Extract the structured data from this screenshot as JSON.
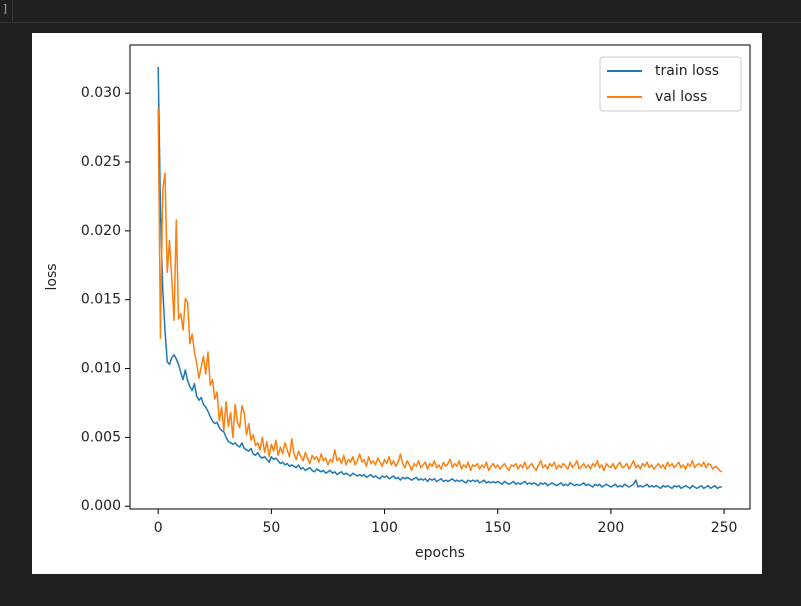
{
  "cell_prompt": "]",
  "chart_data": {
    "type": "line",
    "xlabel": "epochs",
    "ylabel": "loss",
    "x": [
      0,
      1,
      2,
      3,
      4,
      5,
      6,
      7,
      8,
      9,
      10,
      11,
      12,
      13,
      14,
      15,
      16,
      17,
      18,
      19,
      20,
      21,
      22,
      23,
      24,
      25,
      26,
      27,
      28,
      29,
      30,
      31,
      32,
      33,
      34,
      35,
      36,
      37,
      38,
      39,
      40,
      41,
      42,
      43,
      44,
      45,
      46,
      47,
      48,
      49,
      50,
      51,
      52,
      53,
      54,
      55,
      56,
      57,
      58,
      59,
      60,
      61,
      62,
      63,
      64,
      65,
      66,
      67,
      68,
      69,
      70,
      71,
      72,
      73,
      74,
      75,
      76,
      77,
      78,
      79,
      80,
      81,
      82,
      83,
      84,
      85,
      86,
      87,
      88,
      89,
      90,
      91,
      92,
      93,
      94,
      95,
      96,
      97,
      98,
      99,
      100,
      101,
      102,
      103,
      104,
      105,
      106,
      107,
      108,
      109,
      110,
      111,
      112,
      113,
      114,
      115,
      116,
      117,
      118,
      119,
      120,
      121,
      122,
      123,
      124,
      125,
      126,
      127,
      128,
      129,
      130,
      131,
      132,
      133,
      134,
      135,
      136,
      137,
      138,
      139,
      140,
      141,
      142,
      143,
      144,
      145,
      146,
      147,
      148,
      149,
      150,
      151,
      152,
      153,
      154,
      155,
      156,
      157,
      158,
      159,
      160,
      161,
      162,
      163,
      164,
      165,
      166,
      167,
      168,
      169,
      170,
      171,
      172,
      173,
      174,
      175,
      176,
      177,
      178,
      179,
      180,
      181,
      182,
      183,
      184,
      185,
      186,
      187,
      188,
      189,
      190,
      191,
      192,
      193,
      194,
      195,
      196,
      197,
      198,
      199,
      200,
      201,
      202,
      203,
      204,
      205,
      206,
      207,
      208,
      209,
      210,
      211,
      212,
      213,
      214,
      215,
      216,
      217,
      218,
      219,
      220,
      221,
      222,
      223,
      224,
      225,
      226,
      227,
      228,
      229,
      230,
      231,
      232,
      233,
      234,
      235,
      236,
      237,
      238,
      239,
      240,
      241,
      242,
      243,
      244,
      245,
      246,
      247,
      248,
      249
    ],
    "series": [
      {
        "name": "train loss",
        "color": "#1f77b4",
        "values": [
          0.0319,
          0.0215,
          0.0158,
          0.0128,
          0.0105,
          0.0103,
          0.0108,
          0.011,
          0.0107,
          0.0103,
          0.0097,
          0.0092,
          0.0099,
          0.0091,
          0.0087,
          0.0084,
          0.0089,
          0.008,
          0.0077,
          0.0079,
          0.0074,
          0.0072,
          0.0069,
          0.0065,
          0.0062,
          0.006,
          0.0061,
          0.0057,
          0.0055,
          0.0054,
          0.005,
          0.0047,
          0.0046,
          0.0045,
          0.0046,
          0.0044,
          0.0043,
          0.0046,
          0.0042,
          0.0041,
          0.004,
          0.0042,
          0.0038,
          0.0037,
          0.0039,
          0.0036,
          0.0035,
          0.0036,
          0.0034,
          0.0032,
          0.0036,
          0.0034,
          0.0035,
          0.0033,
          0.0031,
          0.0032,
          0.003,
          0.0031,
          0.0029,
          0.003,
          0.0029,
          0.0028,
          0.003,
          0.0027,
          0.0028,
          0.0026,
          0.0027,
          0.0028,
          0.0026,
          0.0025,
          0.0027,
          0.0026,
          0.0025,
          0.0026,
          0.0024,
          0.0025,
          0.0026,
          0.0024,
          0.0025,
          0.0023,
          0.0024,
          0.0025,
          0.0023,
          0.0024,
          0.0023,
          0.0022,
          0.0024,
          0.0023,
          0.0022,
          0.0023,
          0.0022,
          0.0023,
          0.0021,
          0.0022,
          0.0023,
          0.0021,
          0.0022,
          0.0021,
          0.002,
          0.0022,
          0.0021,
          0.0022,
          0.002,
          0.0021,
          0.0022,
          0.002,
          0.0021,
          0.0019,
          0.0021,
          0.002,
          0.0021,
          0.002,
          0.0019,
          0.002,
          0.0021,
          0.0019,
          0.002,
          0.0019,
          0.002,
          0.0018,
          0.002,
          0.0019,
          0.002,
          0.0018,
          0.0019,
          0.002,
          0.0018,
          0.0019,
          0.0018,
          0.0019,
          0.002,
          0.0018,
          0.0019,
          0.0018,
          0.0019,
          0.0018,
          0.0017,
          0.0019,
          0.0018,
          0.0019,
          0.0018,
          0.0019,
          0.0017,
          0.0018,
          0.0019,
          0.0017,
          0.0018,
          0.0017,
          0.0018,
          0.0017,
          0.0018,
          0.0017,
          0.0016,
          0.0018,
          0.0017,
          0.0016,
          0.0017,
          0.0018,
          0.0016,
          0.0017,
          0.0016,
          0.0017,
          0.0018,
          0.0016,
          0.0017,
          0.0016,
          0.0017,
          0.0016,
          0.0015,
          0.0017,
          0.0016,
          0.0017,
          0.0015,
          0.0016,
          0.0017,
          0.0016,
          0.0015,
          0.0016,
          0.0017,
          0.0015,
          0.0016,
          0.0015,
          0.0017,
          0.0016,
          0.0015,
          0.0016,
          0.0015,
          0.0016,
          0.0017,
          0.0015,
          0.0016,
          0.0015,
          0.0014,
          0.0016,
          0.0015,
          0.0016,
          0.0014,
          0.0015,
          0.0016,
          0.0015,
          0.0014,
          0.0015,
          0.0016,
          0.0014,
          0.0015,
          0.0014,
          0.0016,
          0.0015,
          0.0014,
          0.0015,
          0.0016,
          0.0019,
          0.0014,
          0.0015,
          0.0014,
          0.0015,
          0.0016,
          0.0014,
          0.0015,
          0.0014,
          0.0015,
          0.0014,
          0.0013,
          0.0015,
          0.0014,
          0.0015,
          0.0014,
          0.0013,
          0.0015,
          0.0014,
          0.0015,
          0.0013,
          0.0014,
          0.0015,
          0.0014,
          0.0013,
          0.0015,
          0.0014,
          0.0013,
          0.0014,
          0.0015,
          0.0013,
          0.0014,
          0.0015,
          0.0013,
          0.0014,
          0.0015,
          0.0013,
          0.0014,
          0.0014
        ]
      },
      {
        "name": "val loss",
        "color": "#ff7f0e",
        "values": [
          0.0289,
          0.0122,
          0.023,
          0.0242,
          0.017,
          0.0193,
          0.0165,
          0.0135,
          0.0208,
          0.0136,
          0.014,
          0.0128,
          0.0151,
          0.0148,
          0.0118,
          0.0125,
          0.0112,
          0.0104,
          0.0093,
          0.0101,
          0.0109,
          0.0096,
          0.0112,
          0.0088,
          0.0092,
          0.0078,
          0.0083,
          0.0062,
          0.0072,
          0.0055,
          0.0076,
          0.0058,
          0.0068,
          0.005,
          0.0074,
          0.0061,
          0.0057,
          0.0073,
          0.0068,
          0.0052,
          0.006,
          0.0048,
          0.0052,
          0.0044,
          0.0046,
          0.0041,
          0.005,
          0.0039,
          0.0047,
          0.0036,
          0.0045,
          0.004,
          0.0048,
          0.0037,
          0.0043,
          0.0038,
          0.0046,
          0.0041,
          0.0036,
          0.0049,
          0.0038,
          0.0034,
          0.004,
          0.0036,
          0.0033,
          0.0039,
          0.0035,
          0.0031,
          0.0037,
          0.0034,
          0.0036,
          0.0032,
          0.0038,
          0.0033,
          0.0035,
          0.003,
          0.0034,
          0.0032,
          0.0041,
          0.0033,
          0.0035,
          0.0031,
          0.0037,
          0.003,
          0.0034,
          0.0032,
          0.0036,
          0.003,
          0.0033,
          0.0038,
          0.0032,
          0.0034,
          0.0029,
          0.0036,
          0.0031,
          0.0033,
          0.003,
          0.0035,
          0.0032,
          0.0029,
          0.0034,
          0.0031,
          0.0036,
          0.003,
          0.0033,
          0.0029,
          0.0032,
          0.0038,
          0.0031,
          0.0028,
          0.0033,
          0.003,
          0.0026,
          0.0031,
          0.0029,
          0.0033,
          0.0028,
          0.003,
          0.0032,
          0.0027,
          0.0031,
          0.0029,
          0.0033,
          0.0028,
          0.003,
          0.0027,
          0.0032,
          0.0029,
          0.0031,
          0.0034,
          0.0028,
          0.0031,
          0.0029,
          0.0033,
          0.0027,
          0.003,
          0.0028,
          0.0032,
          0.0026,
          0.003,
          0.0029,
          0.0031,
          0.0027,
          0.003,
          0.0028,
          0.0032,
          0.0026,
          0.0029,
          0.0031,
          0.0028,
          0.003,
          0.0027,
          0.0029,
          0.0031,
          0.0028,
          0.0026,
          0.003,
          0.0029,
          0.0031,
          0.0027,
          0.003,
          0.0028,
          0.0032,
          0.0027,
          0.0029,
          0.0031,
          0.0028,
          0.0026,
          0.003,
          0.0033,
          0.0028,
          0.003,
          0.0027,
          0.0031,
          0.0029,
          0.0032,
          0.0027,
          0.003,
          0.0028,
          0.0031,
          0.0029,
          0.0027,
          0.0032,
          0.0028,
          0.003,
          0.0033,
          0.0027,
          0.0029,
          0.0031,
          0.0028,
          0.003,
          0.0027,
          0.0031,
          0.0029,
          0.0033,
          0.0028,
          0.003,
          0.0026,
          0.0031,
          0.0029,
          0.0028,
          0.0031,
          0.0027,
          0.003,
          0.0032,
          0.0028,
          0.0029,
          0.0031,
          0.0027,
          0.003,
          0.0033,
          0.0028,
          0.003,
          0.0027,
          0.0031,
          0.0029,
          0.0032,
          0.0028,
          0.003,
          0.0027,
          0.0029,
          0.0031,
          0.0028,
          0.003,
          0.0027,
          0.0032,
          0.0029,
          0.0031,
          0.0028,
          0.003,
          0.0032,
          0.0028,
          0.003,
          0.0027,
          0.0031,
          0.0029,
          0.0033,
          0.0028,
          0.003,
          0.0031,
          0.0029,
          0.0032,
          0.0028,
          0.0031,
          0.003,
          0.0027,
          0.0029,
          0.0028,
          0.0026,
          0.0025
        ]
      }
    ],
    "xlim": [
      -12.45,
      261.45
    ],
    "ylim": [
      -0.0002,
      0.0335
    ],
    "xticks": [
      0,
      50,
      100,
      150,
      200,
      250
    ],
    "yticks": [
      {
        "value": 0,
        "label": "0.000"
      },
      0.005,
      {
        "value": 0.01,
        "label": "0.010"
      },
      0.015,
      {
        "value": 0.02,
        "label": "0.020"
      },
      0.025,
      {
        "value": 0.03,
        "label": "0.030"
      }
    ],
    "legend": "upper right"
  }
}
